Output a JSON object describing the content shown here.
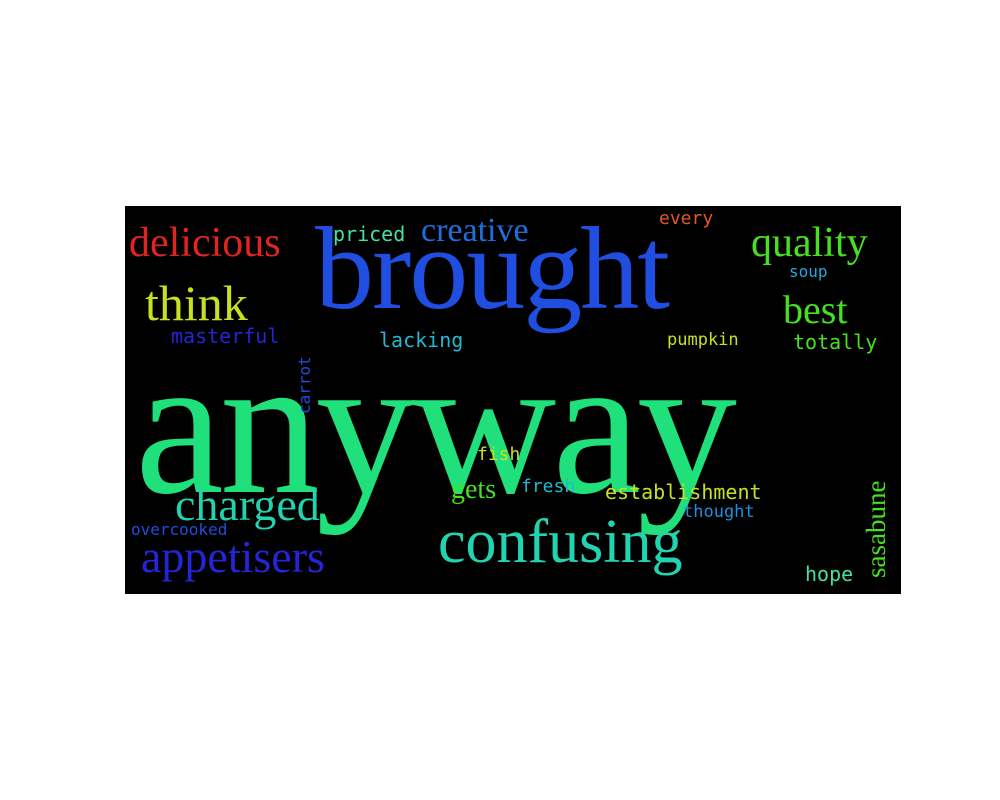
{
  "words": {
    "anyway": {
      "text": "anyway",
      "color": "#1fe07a"
    },
    "brought": {
      "text": "brought",
      "color": "#1f4ee0"
    },
    "confusing": {
      "text": "confusing",
      "color": "#22d3b0"
    },
    "appetisers": {
      "text": "appetisers",
      "color": "#2424d8"
    },
    "charged": {
      "text": "charged",
      "color": "#22d3b0"
    },
    "think": {
      "text": "think",
      "color": "#c8e022"
    },
    "delicious": {
      "text": "delicious",
      "color": "#e0241f"
    },
    "quality": {
      "text": "quality",
      "color": "#46e022"
    },
    "best": {
      "text": "best",
      "color": "#46e022"
    },
    "creative": {
      "text": "creative",
      "color": "#1f6ee0"
    },
    "masterful": {
      "text": "masterful",
      "color": "#2424d8"
    },
    "lacking": {
      "text": "lacking",
      "color": "#22b8d3"
    },
    "priced": {
      "text": "priced",
      "color": "#46e0a0"
    },
    "every": {
      "text": "every",
      "color": "#e05a1f"
    },
    "soup": {
      "text": "soup",
      "color": "#22a8e0"
    },
    "pumpkin": {
      "text": "pumpkin",
      "color": "#c8e022"
    },
    "totally": {
      "text": "totally",
      "color": "#46e022"
    },
    "fish": {
      "text": "fish",
      "color": "#c8e022"
    },
    "gets": {
      "text": "gets",
      "color": "#46e022"
    },
    "fresh": {
      "text": "fresh",
      "color": "#22b8d3"
    },
    "establishment": {
      "text": "establishment",
      "color": "#c8e022"
    },
    "thought": {
      "text": "thought",
      "color": "#1f8ee0"
    },
    "overcooked": {
      "text": "overcooked",
      "color": "#1f4ee0"
    },
    "hope": {
      "text": "hope",
      "color": "#46e0a0"
    },
    "carrot": {
      "text": "carrot",
      "color": "#1f4ee0"
    },
    "sasabune": {
      "text": "sasabune",
      "color": "#46e022"
    }
  }
}
